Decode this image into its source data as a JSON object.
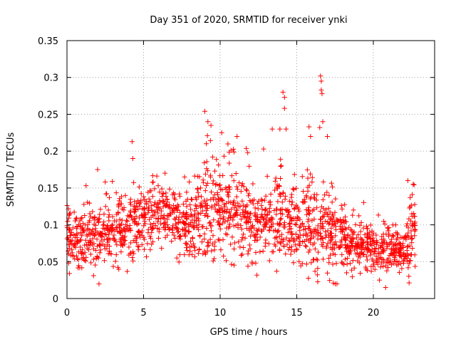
{
  "chart_data": {
    "type": "scatter",
    "title": "Day 351 of 2020, SRMTID for receiver ynki",
    "xlabel": "GPS time / hours",
    "ylabel": "SRMTID / TECUs",
    "xlim": [
      0,
      24
    ],
    "ylim": [
      0,
      0.35
    ],
    "xticks": [
      0,
      5,
      10,
      15,
      20
    ],
    "xtick_labels": [
      "0",
      "5",
      "10",
      "15",
      "20"
    ],
    "yticks": [
      0,
      0.05,
      0.1,
      0.15,
      0.2,
      0.25,
      0.3,
      0.35
    ],
    "ytick_labels": [
      "0",
      "0.05",
      "0.1",
      "0.15",
      "0.2",
      "0.25",
      "0.3",
      "0.35"
    ],
    "grid": true,
    "marker": "plus",
    "series": [
      {
        "name": "ynki",
        "color": "#ff0000",
        "x_range": [
          0.0,
          22.75
        ],
        "profile_hours": [
          0,
          1,
          2,
          3,
          4,
          5,
          6,
          7,
          8,
          9,
          10,
          11,
          12,
          13,
          14,
          15,
          16,
          17,
          18,
          19,
          20,
          21,
          22,
          22.75
        ],
        "profile_median": [
          0.085,
          0.075,
          0.08,
          0.09,
          0.1,
          0.105,
          0.11,
          0.105,
          0.095,
          0.12,
          0.125,
          0.12,
          0.105,
          0.1,
          0.105,
          0.095,
          0.1,
          0.095,
          0.08,
          0.072,
          0.068,
          0.062,
          0.065,
          0.09
        ],
        "profile_spread": [
          0.025,
          0.028,
          0.03,
          0.03,
          0.032,
          0.03,
          0.028,
          0.028,
          0.03,
          0.04,
          0.04,
          0.038,
          0.035,
          0.035,
          0.04,
          0.04,
          0.045,
          0.04,
          0.03,
          0.02,
          0.02,
          0.018,
          0.022,
          0.04
        ],
        "peaks": [
          {
            "x": 4.25,
            "y": 0.213
          },
          {
            "x": 4.3,
            "y": 0.19
          },
          {
            "x": 2.0,
            "y": 0.175
          },
          {
            "x": 6.4,
            "y": 0.17
          },
          {
            "x": 9.0,
            "y": 0.254
          },
          {
            "x": 9.2,
            "y": 0.24
          },
          {
            "x": 9.4,
            "y": 0.235
          },
          {
            "x": 9.1,
            "y": 0.21
          },
          {
            "x": 10.1,
            "y": 0.225
          },
          {
            "x": 11.1,
            "y": 0.22
          },
          {
            "x": 11.8,
            "y": 0.198
          },
          {
            "x": 13.4,
            "y": 0.23
          },
          {
            "x": 13.9,
            "y": 0.23
          },
          {
            "x": 14.1,
            "y": 0.28
          },
          {
            "x": 14.2,
            "y": 0.273
          },
          {
            "x": 14.2,
            "y": 0.258
          },
          {
            "x": 14.3,
            "y": 0.23
          },
          {
            "x": 15.8,
            "y": 0.233
          },
          {
            "x": 15.9,
            "y": 0.22
          },
          {
            "x": 16.55,
            "y": 0.302
          },
          {
            "x": 16.6,
            "y": 0.295
          },
          {
            "x": 16.6,
            "y": 0.283
          },
          {
            "x": 16.65,
            "y": 0.278
          },
          {
            "x": 16.7,
            "y": 0.24
          },
          {
            "x": 17.0,
            "y": 0.22
          },
          {
            "x": 16.5,
            "y": 0.232
          },
          {
            "x": 22.25,
            "y": 0.16
          },
          {
            "x": 22.6,
            "y": 0.155
          },
          {
            "x": 20.8,
            "y": 0.015
          },
          {
            "x": 20.4,
            "y": 0.025
          }
        ]
      }
    ]
  }
}
